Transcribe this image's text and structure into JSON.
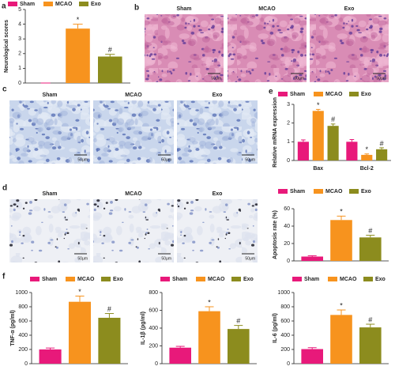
{
  "image_panels": [
    {
      "panel": "b",
      "labels": [
        "Sham",
        "MCAO",
        "Exo"
      ],
      "scale_bars": [
        "50μm",
        "50μm",
        "50μm"
      ]
    },
    {
      "panel": "c",
      "labels": [
        "Sham",
        "MCAO",
        "Exo"
      ],
      "scale_bars": [
        "50μm",
        "50μm",
        "50μm"
      ]
    },
    {
      "panel": "d",
      "labels": [
        "Sham",
        "MCAO",
        "Exo"
      ],
      "scale_bars": [
        "50μm",
        "50μm",
        "50μm"
      ]
    }
  ],
  "chart_data": [
    {
      "panel": "a",
      "type": "bar",
      "ylabel": "Neurological scores",
      "categories": [
        null
      ],
      "ylim": [
        0,
        5
      ],
      "yticks": [
        0,
        1,
        2,
        3,
        4,
        5
      ],
      "series": [
        {
          "name": "Sham",
          "color": "#e8197a",
          "values": [
            0
          ],
          "errors": [
            0
          ],
          "annotations": [
            null
          ]
        },
        {
          "name": "MCAO",
          "color": "#f7931e",
          "values": [
            3.7
          ],
          "errors": [
            0.3
          ],
          "annotations": [
            "*"
          ]
        },
        {
          "name": "Exo",
          "color": "#8c8c1e",
          "values": [
            1.8
          ],
          "errors": [
            0.15
          ],
          "annotations": [
            "#"
          ]
        }
      ]
    },
    {
      "panel": "e",
      "type": "bar",
      "ylabel": "Relative mRNA expression",
      "categories": [
        "Bax",
        "Bcl-2"
      ],
      "ylim": [
        0,
        3
      ],
      "yticks": [
        0,
        1,
        2,
        3
      ],
      "series": [
        {
          "name": "Sham",
          "color": "#e8197a",
          "values": [
            1.0,
            1.0
          ],
          "errors": [
            0.1,
            0.12
          ],
          "annotations": [
            null,
            null
          ]
        },
        {
          "name": "MCAO",
          "color": "#f7931e",
          "values": [
            2.65,
            0.3
          ],
          "errors": [
            0.08,
            0.05
          ],
          "annotations": [
            "*",
            "*"
          ]
        },
        {
          "name": "Exo",
          "color": "#8c8c1e",
          "values": [
            1.85,
            0.6
          ],
          "errors": [
            0.1,
            0.08
          ],
          "annotations": [
            "#",
            "#"
          ]
        }
      ]
    },
    {
      "type": "bar",
      "ylabel": "Apoptosis rate (%)",
      "categories": [
        null
      ],
      "ylim": [
        0,
        60
      ],
      "yticks": [
        0,
        20,
        40,
        60
      ],
      "series": [
        {
          "name": "Sham",
          "color": "#e8197a",
          "values": [
            5
          ],
          "errors": [
            1
          ],
          "annotations": [
            null
          ]
        },
        {
          "name": "MCAO",
          "color": "#f7931e",
          "values": [
            47
          ],
          "errors": [
            4.5
          ],
          "annotations": [
            "*"
          ]
        },
        {
          "name": "Exo",
          "color": "#8c8c1e",
          "values": [
            27
          ],
          "errors": [
            2.5
          ],
          "annotations": [
            "#"
          ]
        }
      ]
    },
    {
      "panel": "f",
      "type": "bar",
      "ylabel": "TNF-α (pg/ml)",
      "categories": [
        null
      ],
      "ylim": [
        0,
        1000
      ],
      "yticks": [
        0,
        200,
        400,
        600,
        800,
        1000
      ],
      "series": [
        {
          "name": "Sham",
          "color": "#e8197a",
          "values": [
            200
          ],
          "errors": [
            20
          ],
          "annotations": [
            null
          ]
        },
        {
          "name": "MCAO",
          "color": "#f7931e",
          "values": [
            870
          ],
          "errors": [
            80
          ],
          "annotations": [
            "*"
          ]
        },
        {
          "name": "Exo",
          "color": "#8c8c1e",
          "values": [
            645
          ],
          "errors": [
            60
          ],
          "annotations": [
            "#"
          ]
        }
      ]
    },
    {
      "type": "bar",
      "ylabel": "IL-1β (pg/ml)",
      "categories": [
        null
      ],
      "ylim": [
        0,
        800
      ],
      "yticks": [
        0,
        200,
        400,
        600,
        800
      ],
      "series": [
        {
          "name": "Sham",
          "color": "#e8197a",
          "values": [
            180
          ],
          "errors": [
            15
          ],
          "annotations": [
            null
          ]
        },
        {
          "name": "MCAO",
          "color": "#f7931e",
          "values": [
            590
          ],
          "errors": [
            50
          ],
          "annotations": [
            "*"
          ]
        },
        {
          "name": "Exo",
          "color": "#8c8c1e",
          "values": [
            390
          ],
          "errors": [
            40
          ],
          "annotations": [
            "#"
          ]
        }
      ]
    },
    {
      "type": "bar",
      "ylabel": "IL-6 (pg/ml)",
      "categories": [
        null
      ],
      "ylim": [
        0,
        1000
      ],
      "yticks": [
        0,
        200,
        400,
        600,
        800,
        1000
      ],
      "series": [
        {
          "name": "Sham",
          "color": "#e8197a",
          "values": [
            205
          ],
          "errors": [
            20
          ],
          "annotations": [
            null
          ]
        },
        {
          "name": "MCAO",
          "color": "#f7931e",
          "values": [
            685
          ],
          "errors": [
            70
          ],
          "annotations": [
            "*"
          ]
        },
        {
          "name": "Exo",
          "color": "#8c8c1e",
          "values": [
            510
          ],
          "errors": [
            45
          ],
          "annotations": [
            "#"
          ]
        }
      ]
    }
  ]
}
